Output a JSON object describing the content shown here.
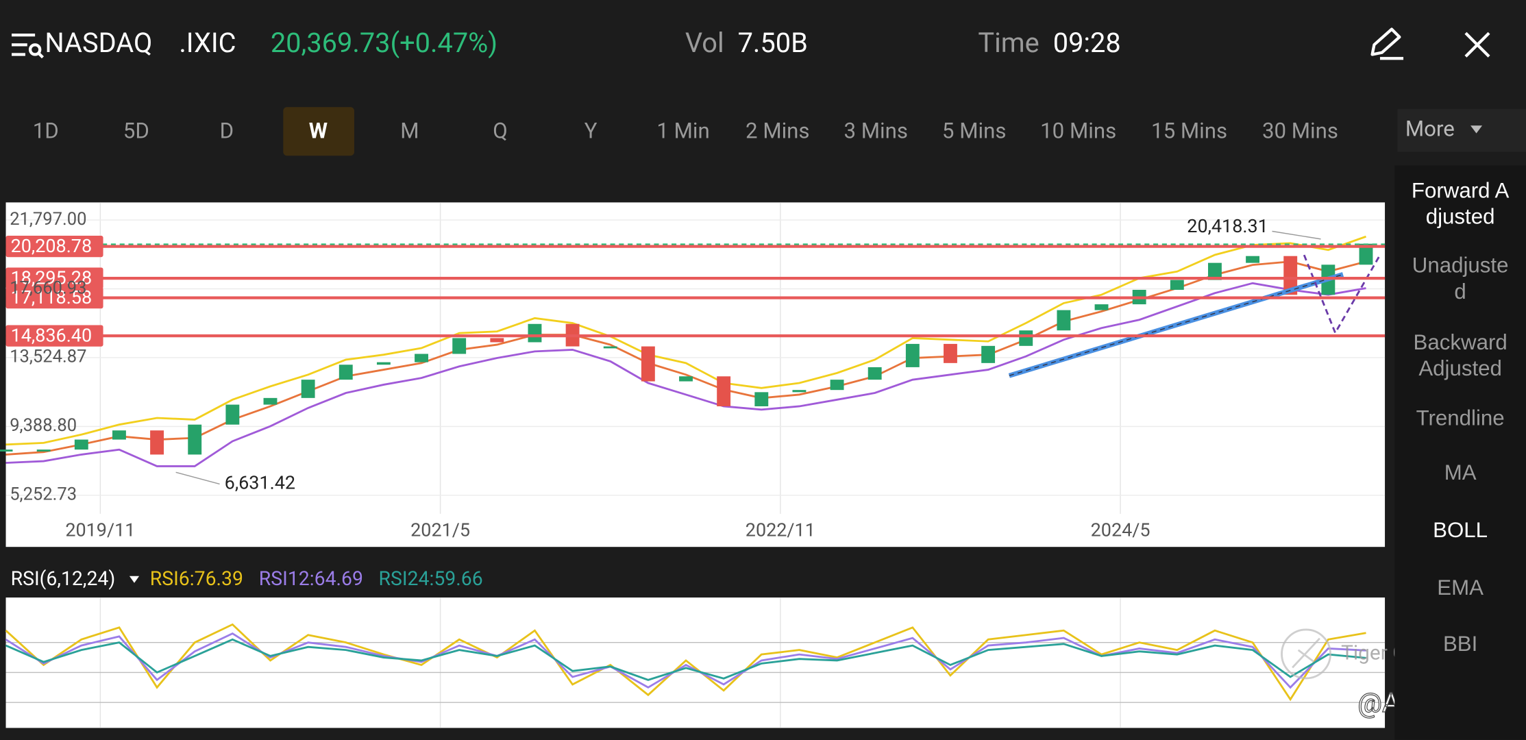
{
  "header": {
    "name": "NASDAQ",
    "code": ".IXIC",
    "quote": "20,369.73(+0.47%)",
    "vol_label": "Vol",
    "vol": "7.50B",
    "time_label": "Time",
    "time": "09:28"
  },
  "timeframes": {
    "items": [
      "1D",
      "5D",
      "D",
      "W",
      "M",
      "Q",
      "Y",
      "1 Min",
      "2 Mins",
      "3 Mins",
      "5 Mins",
      "10 Mins",
      "15 Mins",
      "30 Mins"
    ],
    "active": 3,
    "more": "More"
  },
  "side_menu": {
    "items": [
      "Forward Adjusted",
      "Unadjusted",
      "Backward Adjusted",
      "Trendline",
      "MA",
      "BOLL",
      "EMA",
      "BBI"
    ],
    "active": [
      0,
      5
    ]
  },
  "chart_data": [
    {
      "type": "candle",
      "x": [
        "2019/6",
        "2019/8",
        "2019/10",
        "2019/12",
        "2020/2",
        "2020/4",
        "2020/6",
        "2020/8",
        "2020/10",
        "2020/12",
        "2021/2",
        "2021/4",
        "2021/6",
        "2021/8",
        "2021/10",
        "2021/12",
        "2022/2",
        "2022/4",
        "2022/6",
        "2022/8",
        "2022/10",
        "2022/12",
        "2023/2",
        "2023/4",
        "2023/6",
        "2023/8",
        "2023/10",
        "2023/12",
        "2024/2",
        "2024/4",
        "2024/6",
        "2024/8",
        "2024/10",
        "2024/12",
        "2025/2",
        "2025/4",
        "2025/6"
      ],
      "values": [
        8000,
        8000,
        8600,
        9150,
        7700,
        9500,
        10700,
        11100,
        12200,
        13100,
        13250,
        13750,
        14700,
        14450,
        15550,
        14200,
        14200,
        12100,
        12400,
        10600,
        11450,
        11580,
        12200,
        12950,
        14350,
        13200,
        14230,
        15160,
        16380,
        16730,
        17600,
        18190,
        19220,
        19630,
        17300,
        19110,
        20370
      ],
      "up_color": "#26a269",
      "down_color": "#e5534b",
      "series": [
        {
          "color": "#f2cf1d",
          "values": [
            8300,
            8400,
            8900,
            9500,
            9900,
            9800,
            11000,
            11800,
            12500,
            13400,
            13700,
            14100,
            15000,
            15100,
            15900,
            15600,
            14800,
            13700,
            13200,
            12000,
            11700,
            12000,
            12600,
            13400,
            14700,
            14600,
            14500,
            15600,
            16800,
            17300,
            18300,
            18700,
            19700,
            20300,
            20400,
            20000,
            20800
          ]
        },
        {
          "color": "#e8743b",
          "values": [
            7700,
            7850,
            8300,
            8800,
            8600,
            8700,
            9800,
            10600,
            11500,
            12400,
            12800,
            13200,
            14000,
            14300,
            14900,
            14900,
            14300,
            13200,
            12500,
            11600,
            11100,
            11300,
            11800,
            12400,
            13500,
            13600,
            13700,
            14600,
            15700,
            16300,
            17000,
            17700,
            18500,
            19100,
            19300,
            18700,
            19300
          ]
        },
        {
          "color": "#a05ad8",
          "values": [
            7200,
            7300,
            7700,
            8000,
            7000,
            7000,
            8500,
            9400,
            10500,
            11400,
            11900,
            12300,
            13000,
            13500,
            13900,
            14000,
            13300,
            12000,
            11300,
            10600,
            10400,
            10600,
            11000,
            11400,
            12200,
            12500,
            12800,
            13600,
            14600,
            15300,
            15800,
            16600,
            17400,
            18000,
            17600,
            17300,
            17700
          ]
        }
      ],
      "xlim": [
        "2019/6",
        "2025/7"
      ],
      "xticks": [
        "2019/11",
        "2021/5",
        "2022/11",
        "2024/5"
      ],
      "ylim": [
        4138,
        22853
      ],
      "yticks": [
        {
          "value": 21797,
          "label": "21,797.00"
        },
        {
          "value": 17660.93,
          "label": "17,660.93"
        },
        {
          "value": 13524.87,
          "label": "13,524.87"
        },
        {
          "value": 9388.8,
          "label": "9,388.80"
        },
        {
          "value": 5252.73,
          "label": "5,252.73"
        }
      ],
      "levels": [
        {
          "value": 20208.78,
          "label": "20,208.78"
        },
        {
          "value": 18295.28,
          "label": "18,295.28"
        },
        {
          "value": 17118.58,
          "label": "17,118.58"
        },
        {
          "value": 14836.4,
          "label": "14,836.40"
        }
      ],
      "level_color": "#e85a5a",
      "annotations": [
        {
          "x": "2024/12",
          "value": 20418.31,
          "label": "20,418.31"
        },
        {
          "x": "2020/3",
          "value": 6631.42,
          "label": "6,631.42"
        }
      ],
      "grid": true
    },
    {
      "type": "line",
      "title": "RSI(6,12,24)",
      "series": [
        {
          "name": "RSI6:76.39",
          "color": "#e8c21a",
          "values": [
            78,
            55,
            72,
            80,
            40,
            70,
            82,
            58,
            75,
            70,
            62,
            55,
            72,
            60,
            78,
            42,
            55,
            35,
            58,
            38,
            62,
            65,
            60,
            70,
            80,
            48,
            72,
            75,
            78,
            62,
            70,
            65,
            78,
            70,
            32,
            72,
            76.39
          ]
        },
        {
          "name": "RSI12:64.69",
          "color": "#9b7de8",
          "values": [
            72,
            56,
            68,
            74,
            45,
            64,
            76,
            60,
            70,
            67,
            61,
            57,
            68,
            61,
            72,
            47,
            54,
            40,
            55,
            42,
            58,
            62,
            59,
            66,
            73,
            52,
            68,
            70,
            73,
            61,
            66,
            63,
            72,
            67,
            40,
            66,
            64.69
          ]
        },
        {
          "name": "RSI24:59.66",
          "color": "#2aa198",
          "values": [
            68,
            57,
            65,
            70,
            50,
            61,
            72,
            61,
            67,
            65,
            60,
            58,
            65,
            61,
            68,
            51,
            54,
            45,
            53,
            46,
            56,
            59,
            58,
            63,
            68,
            55,
            65,
            67,
            69,
            61,
            64,
            62,
            68,
            65,
            47,
            62,
            59.66
          ]
        }
      ],
      "ylim": [
        13,
        100
      ],
      "grid_levels": [
        30,
        50,
        70
      ]
    }
  ],
  "watermark": [
    "Tiger Community",
    "@Ah_Meng"
  ]
}
